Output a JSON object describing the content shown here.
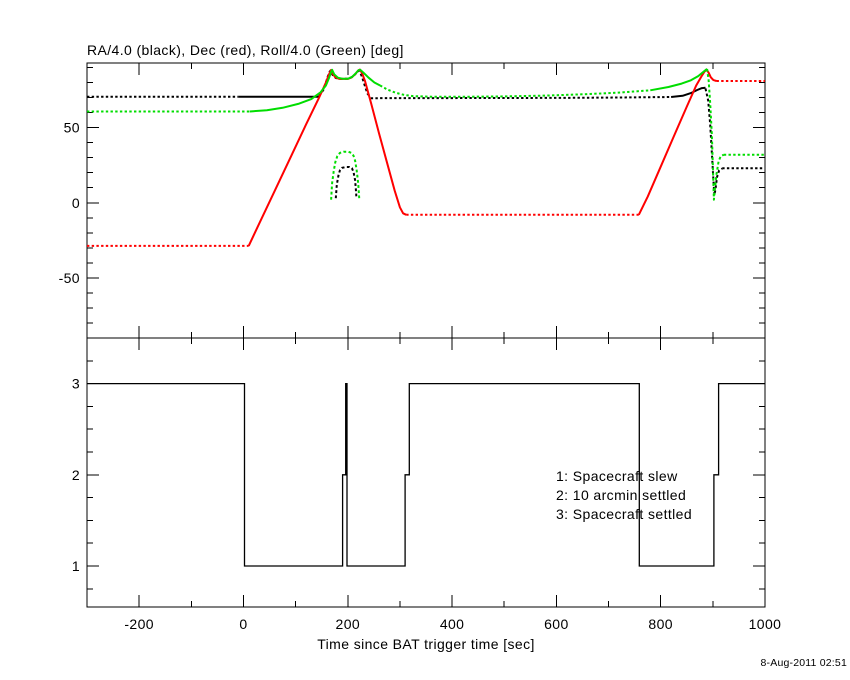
{
  "xaxis": {
    "label": "Time since BAT trigger time [sec]",
    "range": [
      -300,
      1000
    ],
    "ticks": [
      -200,
      0,
      200,
      400,
      600,
      800,
      1000
    ],
    "tick_labels": [
      "-200",
      "0",
      "200",
      "400",
      "600",
      "800",
      "1000"
    ],
    "minor_step": 100
  },
  "footer": {
    "timestamp": "8-Aug-2011 02:51"
  },
  "chart_data": [
    {
      "type": "line",
      "panel": "attitude",
      "title": "RA/4.0 (black), Dec (red), Roll/4.0 (Green) [deg]",
      "xlim": [
        -300,
        1000
      ],
      "ylim": [
        -90,
        93
      ],
      "yticks": [
        50,
        0,
        -50
      ],
      "ytick_labels": [
        "50",
        "0",
        "-50"
      ],
      "yminor_step": 10,
      "grid": false,
      "series": [
        {
          "name": "RA/4.0",
          "key": "ra",
          "color": "#000000",
          "segments": [
            {
              "style": "dotted",
              "points": [
                [
                  -300,
                  70.5
                ],
                [
                  -10,
                  70.5
                ]
              ]
            },
            {
              "style": "solid",
              "points": [
                [
                  -10,
                  70.5
                ],
                [
                  145,
                  70.5
                ]
              ]
            },
            {
              "style": "dashed",
              "points": [
                [
                  145,
                  71
                ],
                [
                  153,
                  75
                ],
                [
                  159,
                  81
                ],
                [
                  164,
                  86.5
                ],
                [
                  167,
                  88
                ],
                [
                  171,
                  85
                ],
                [
                  177,
                  83
                ],
                [
                  186,
                  82.5
                ],
                [
                  200,
                  82.5
                ],
                [
                  210,
                  84
                ],
                [
                  217,
                  86.5
                ],
                [
                  222,
                  88
                ],
                [
                  227,
                  84
                ],
                [
                  233,
                  77.5
                ],
                [
                  238,
                  72.5
                ],
                [
                  244,
                  70.2
                ]
              ]
            },
            {
              "style": "dotted",
              "points": [
                [
                  244,
                  69.6
                ],
                [
                  600,
                  69.8
                ],
                [
                  700,
                  70
                ],
                [
                  820,
                  70.4
                ]
              ]
            },
            {
              "style": "solid",
              "points": [
                [
                  820,
                  70.4
                ],
                [
                  842,
                  71.2
                ],
                [
                  858,
                  73
                ],
                [
                  870,
                  75
                ],
                [
                  879,
                  76.3
                ],
                [
                  886,
                  76.5
                ]
              ]
            },
            {
              "style": "dashed",
              "points": [
                [
                  886,
                  76
                ],
                [
                  891,
                  68
                ],
                [
                  895,
                  52
                ],
                [
                  898,
                  34
                ],
                [
                  901,
                  15
                ],
                [
                  903,
                  5
                ],
                [
                  905,
                  9
                ],
                [
                  908,
                  17
                ],
                [
                  912,
                  21.5
                ],
                [
                  918,
                  22.8
                ]
              ]
            },
            {
              "style": "dotted",
              "points": [
                [
                  918,
                  23
                ],
                [
                  1000,
                  23
                ]
              ]
            },
            {
              "style": "dashed",
              "points": [
                [
                  177,
                  3
                ],
                [
                  179,
                  12
                ],
                [
                  182,
                  18
                ],
                [
                  185,
                  21.5
                ],
                [
                  189,
                  23.2
                ],
                [
                  196,
                  23.8
                ],
                [
                  203,
                  23.8
                ],
                [
                  208,
                  23
                ],
                [
                  211,
                  20.5
                ],
                [
                  214,
                  15
                ],
                [
                  216,
                  7
                ],
                [
                  216.5,
                  3
                ]
              ]
            }
          ]
        },
        {
          "name": "Dec",
          "key": "dec",
          "color": "#ff0000",
          "segments": [
            {
              "style": "dotted",
              "points": [
                [
                  -300,
                  -28.7
                ],
                [
                  10,
                  -28.7
                ]
              ]
            },
            {
              "style": "solid",
              "points": [
                [
                  10,
                  -28.7
                ],
                [
                  30,
                  -14
                ],
                [
                  60,
                  8
                ],
                [
                  90,
                  30
                ],
                [
                  120,
                  52
                ],
                [
                  145,
                  70
                ],
                [
                  158,
                  80
                ],
                [
                  164,
                  85.5
                ],
                [
                  168,
                  88.3
                ],
                [
                  171,
                  86
                ],
                [
                  176,
                  83.5
                ],
                [
                  184,
                  82.4
                ],
                [
                  200,
                  82.4
                ],
                [
                  207,
                  83.3
                ],
                [
                  214,
                  85.5
                ],
                [
                  220,
                  88
                ],
                [
                  223,
                  88.6
                ],
                [
                  227,
                  86.5
                ],
                [
                  233,
                  81
                ],
                [
                  245,
                  66
                ],
                [
                  260,
                  46
                ],
                [
                  275,
                  27
                ],
                [
                  290,
                  8
                ],
                [
                  300,
                  -3
                ],
                [
                  306,
                  -7
                ],
                [
                  312,
                  -8
                ]
              ]
            },
            {
              "style": "dotted",
              "points": [
                [
                  312,
                  -8
                ],
                [
                  758,
                  -8
                ]
              ]
            },
            {
              "style": "solid",
              "points": [
                [
                  758,
                  -8
                ],
                [
                  775,
                  4
                ],
                [
                  800,
                  24
                ],
                [
                  825,
                  44
                ],
                [
                  850,
                  64
                ],
                [
                  868,
                  78
                ],
                [
                  878,
                  84
                ],
                [
                  884,
                  87.3
                ],
                [
                  888,
                  88.6
                ],
                [
                  892,
                  86.5
                ],
                [
                  896,
                  83.5
                ],
                [
                  901,
                  81.6
                ],
                [
                  907,
                  81
                ]
              ]
            },
            {
              "style": "dotted",
              "points": [
                [
                  907,
                  81
                ],
                [
                  1000,
                  81
                ]
              ]
            }
          ]
        },
        {
          "name": "Roll/4.0",
          "key": "roll",
          "color": "#00dd00",
          "segments": [
            {
              "style": "dotted",
              "points": [
                [
                  -300,
                  60.7
                ],
                [
                  12,
                  60.7
                ]
              ]
            },
            {
              "style": "solid",
              "points": [
                [
                  12,
                  60.7
                ],
                [
                  45,
                  61.6
                ],
                [
                  75,
                  63.2
                ],
                [
                  105,
                  65.8
                ],
                [
                  130,
                  69
                ],
                [
                  148,
                  73.5
                ],
                [
                  158,
                  78
                ],
                [
                  164,
                  83
                ],
                [
                  168,
                  87
                ],
                [
                  170,
                  88.5
                ],
                [
                  174,
                  85.5
                ],
                [
                  181,
                  83.2
                ],
                [
                  190,
                  82.5
                ],
                [
                  200,
                  82.5
                ],
                [
                  208,
                  83.6
                ],
                [
                  215,
                  86
                ],
                [
                  221,
                  88.3
                ],
                [
                  224,
                  88.5
                ],
                [
                  231,
                  86.3
                ],
                [
                  240,
                  83.2
                ],
                [
                  251,
                  80
                ],
                [
                  262,
                  78
                ]
              ]
            },
            {
              "style": "dotted",
              "points": [
                [
                  262,
                  78
                ],
                [
                  276,
                  75.3
                ],
                [
                  292,
                  73.2
                ],
                [
                  308,
                  71.8
                ],
                [
                  325,
                  71
                ],
                [
                  360,
                  70.6
                ],
                [
                  420,
                  70.5
                ],
                [
                  500,
                  70.8
                ],
                [
                  580,
                  71.3
                ],
                [
                  660,
                  72.3
                ],
                [
                  720,
                  73.3
                ],
                [
                  780,
                  74.8
                ]
              ]
            },
            {
              "style": "solid",
              "points": [
                [
                  780,
                  74.8
                ],
                [
                  815,
                  77
                ],
                [
                  840,
                  79.3
                ],
                [
                  858,
                  81.5
                ],
                [
                  872,
                  84.3
                ],
                [
                  881,
                  86.8
                ],
                [
                  886,
                  88.3
                ],
                [
                  889,
                  89
                ]
              ]
            },
            {
              "style": "dashed",
              "points": [
                [
                  889,
                  89
                ],
                [
                  892,
                  81
                ],
                [
                  895,
                  66
                ],
                [
                  898,
                  46
                ],
                [
                  900,
                  26
                ],
                [
                  901.5,
                  8
                ],
                [
                  902,
                  2
                ],
                [
                  904,
                  9
                ],
                [
                  907,
                  19
                ],
                [
                  911,
                  27.5
                ],
                [
                  915,
                  31
                ],
                [
                  921,
                  32
                ]
              ]
            },
            {
              "style": "dotted",
              "points": [
                [
                  921,
                  32
                ],
                [
                  1000,
                  32
                ]
              ]
            },
            {
              "style": "dashed",
              "points": [
                [
                  168,
                  2
                ],
                [
                  170,
                  13
                ],
                [
                  173,
                  21
                ],
                [
                  176,
                  27
                ],
                [
                  180,
                  31
                ],
                [
                  185,
                  33.2
                ],
                [
                  192,
                  34
                ],
                [
                  201,
                  34
                ],
                [
                  207,
                  33.2
                ],
                [
                  211,
                  31.3
                ],
                [
                  214,
                  28
                ],
                [
                  217,
                  22
                ],
                [
                  220,
                  13
                ],
                [
                  222,
                  3
                ]
              ]
            }
          ]
        }
      ]
    },
    {
      "type": "step",
      "panel": "settled-status",
      "xlim": [
        -300,
        1000
      ],
      "ylim": [
        0.55,
        3.5
      ],
      "yticks": [
        3,
        2,
        1
      ],
      "ytick_labels": [
        "3",
        "2",
        "1"
      ],
      "yminor_step": 0.25,
      "grid": false,
      "legend": [
        "1: Spacecraft slew",
        "2: 10 arcmin settled",
        "3: Spacecraft settled"
      ],
      "series": [
        {
          "name": "settled-status",
          "color": "#000000",
          "points": [
            [
              -300,
              3
            ],
            [
              2,
              3
            ],
            [
              2,
              1
            ],
            [
              190,
              1
            ],
            [
              190,
              2
            ],
            [
              196,
              2
            ],
            [
              196,
              3
            ],
            [
              198.5,
              3
            ],
            [
              198.5,
              1
            ],
            [
              310,
              1
            ],
            [
              310,
              2
            ],
            [
              318,
              2
            ],
            [
              318,
              3
            ],
            [
              759,
              3
            ],
            [
              759,
              1
            ],
            [
              902,
              1
            ],
            [
              902,
              2
            ],
            [
              911,
              2
            ],
            [
              911,
              3
            ],
            [
              1000,
              3
            ]
          ]
        }
      ]
    }
  ]
}
